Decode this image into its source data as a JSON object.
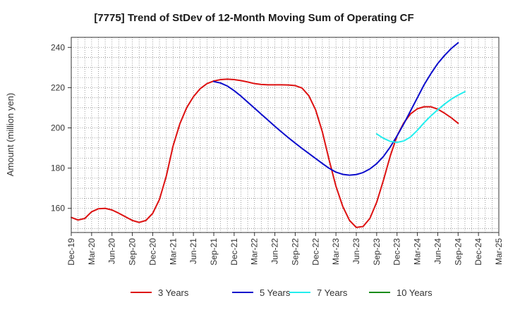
{
  "chart_data": {
    "type": "line",
    "title": "[7775]  Trend of StDev of 12-Month Moving Sum of Operating CF",
    "ylabel": "Amount (million yen)",
    "xlabel": "",
    "ylim": [
      148,
      245
    ],
    "yticks": [
      160,
      180,
      200,
      220,
      240
    ],
    "x_categories": [
      "Dec-19",
      "Mar-20",
      "Jun-20",
      "Sep-20",
      "Dec-20",
      "Mar-21",
      "Jun-21",
      "Sep-21",
      "Dec-21",
      "Mar-22",
      "Jun-22",
      "Sep-22",
      "Dec-22",
      "Mar-23",
      "Jun-23",
      "Sep-23",
      "Dec-23",
      "Mar-24",
      "Jun-24",
      "Sep-24",
      "Dec-24",
      "Mar-25"
    ],
    "grid": true,
    "legend_position": "bottom",
    "series": [
      {
        "name": "3 Years",
        "color": "#dd1111",
        "points": [
          [
            "Dec-19",
            155.5
          ],
          [
            "Jan-20",
            154.2
          ],
          [
            "Feb-20",
            155.0
          ],
          [
            "Mar-20",
            158.3
          ],
          [
            "Apr-20",
            159.8
          ],
          [
            "May-20",
            160.0
          ],
          [
            "Jun-20",
            159.2
          ],
          [
            "Jul-20",
            157.6
          ],
          [
            "Aug-20",
            155.8
          ],
          [
            "Sep-20",
            154.0
          ],
          [
            "Oct-20",
            153.0
          ],
          [
            "Nov-20",
            154.0
          ],
          [
            "Dec-20",
            157.5
          ],
          [
            "Jan-21",
            164.5
          ],
          [
            "Feb-21",
            176.0
          ],
          [
            "Mar-21",
            191.0
          ],
          [
            "Apr-21",
            202.0
          ],
          [
            "May-21",
            210.0
          ],
          [
            "Jun-21",
            215.5
          ],
          [
            "Jul-21",
            219.5
          ],
          [
            "Aug-21",
            222.0
          ],
          [
            "Sep-21",
            223.3
          ],
          [
            "Oct-21",
            224.0
          ],
          [
            "Nov-21",
            224.2
          ],
          [
            "Dec-21",
            224.0
          ],
          [
            "Jan-22",
            223.5
          ],
          [
            "Feb-22",
            222.8
          ],
          [
            "Mar-22",
            222.0
          ],
          [
            "Apr-22",
            221.6
          ],
          [
            "May-22",
            221.4
          ],
          [
            "Jun-22",
            221.4
          ],
          [
            "Jul-22",
            221.4
          ],
          [
            "Aug-22",
            221.3
          ],
          [
            "Sep-22",
            221.0
          ],
          [
            "Oct-22",
            219.8
          ],
          [
            "Nov-22",
            216.0
          ],
          [
            "Dec-22",
            209.0
          ],
          [
            "Jan-23",
            198.0
          ],
          [
            "Feb-23",
            184.0
          ],
          [
            "Mar-23",
            171.0
          ],
          [
            "Apr-23",
            161.0
          ],
          [
            "May-23",
            154.0
          ],
          [
            "Jun-23",
            150.5
          ],
          [
            "Jul-23",
            151.0
          ],
          [
            "Aug-23",
            155.0
          ],
          [
            "Sep-23",
            163.0
          ],
          [
            "Oct-23",
            174.0
          ],
          [
            "Nov-23",
            186.0
          ],
          [
            "Dec-23",
            196.0
          ],
          [
            "Jan-24",
            202.5
          ],
          [
            "Feb-24",
            207.0
          ],
          [
            "Mar-24",
            209.5
          ],
          [
            "Apr-24",
            210.5
          ],
          [
            "May-24",
            210.5
          ],
          [
            "Jun-24",
            209.3
          ],
          [
            "Jul-24",
            207.3
          ],
          [
            "Aug-24",
            205.0
          ],
          [
            "Sep-24",
            202.3
          ]
        ]
      },
      {
        "name": "5 Years",
        "color": "#0c0ccc",
        "points": [
          [
            "Sep-21",
            223.0
          ],
          [
            "Oct-21",
            222.3
          ],
          [
            "Nov-21",
            220.8
          ],
          [
            "Dec-21",
            218.5
          ],
          [
            "Jan-22",
            215.8
          ],
          [
            "Feb-22",
            212.8
          ],
          [
            "Mar-22",
            209.8
          ],
          [
            "Apr-22",
            206.8
          ],
          [
            "May-22",
            203.8
          ],
          [
            "Jun-22",
            200.8
          ],
          [
            "Jul-22",
            197.9
          ],
          [
            "Aug-22",
            195.1
          ],
          [
            "Sep-22",
            192.4
          ],
          [
            "Oct-22",
            189.8
          ],
          [
            "Nov-22",
            187.3
          ],
          [
            "Dec-22",
            184.8
          ],
          [
            "Jan-23",
            182.3
          ],
          [
            "Feb-23",
            179.9
          ],
          [
            "Mar-23",
            178.0
          ],
          [
            "Apr-23",
            176.9
          ],
          [
            "May-23",
            176.5
          ],
          [
            "Jun-23",
            176.8
          ],
          [
            "Jul-23",
            177.8
          ],
          [
            "Aug-23",
            179.6
          ],
          [
            "Sep-23",
            182.2
          ],
          [
            "Oct-23",
            185.8
          ],
          [
            "Nov-23",
            190.5
          ],
          [
            "Dec-23",
            196.0
          ],
          [
            "Jan-24",
            202.0
          ],
          [
            "Feb-24",
            208.5
          ],
          [
            "Mar-24",
            215.0
          ],
          [
            "Apr-24",
            221.5
          ],
          [
            "May-24",
            227.0
          ],
          [
            "Jun-24",
            232.0
          ],
          [
            "Jul-24",
            236.0
          ],
          [
            "Aug-24",
            239.5
          ],
          [
            "Sep-24",
            242.3
          ]
        ]
      },
      {
        "name": "7 Years",
        "color": "#22eeee",
        "points": [
          [
            "Sep-23",
            197.0
          ],
          [
            "Oct-23",
            194.8
          ],
          [
            "Nov-23",
            193.3
          ],
          [
            "Dec-23",
            192.8
          ],
          [
            "Jan-24",
            193.5
          ],
          [
            "Feb-24",
            195.5
          ],
          [
            "Mar-24",
            198.8
          ],
          [
            "Apr-24",
            202.6
          ],
          [
            "May-24",
            206.0
          ],
          [
            "Jun-24",
            209.0
          ],
          [
            "Jul-24",
            211.8
          ],
          [
            "Aug-24",
            214.3
          ],
          [
            "Sep-24",
            216.3
          ],
          [
            "Oct-24",
            218.0
          ]
        ]
      },
      {
        "name": "10 Years",
        "color": "#1a8c1a",
        "points": []
      }
    ]
  }
}
